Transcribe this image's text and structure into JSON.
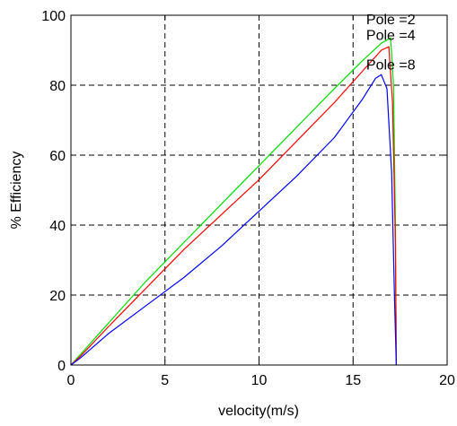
{
  "chart_data": {
    "type": "line",
    "xlabel": "velocity(m/s)",
    "ylabel": "% Efficiency",
    "xlim": [
      0,
      20
    ],
    "ylim": [
      0,
      100
    ],
    "x_ticks": [
      "0",
      "5",
      "10",
      "15",
      "20"
    ],
    "y_ticks": [
      "0",
      "20",
      "40",
      "60",
      "80",
      "100"
    ],
    "grid": true,
    "grid_style": "dashed",
    "series": [
      {
        "color": "#00dd00",
        "points": [
          [
            0,
            0
          ],
          [
            0.5,
            3
          ],
          [
            2,
            12
          ],
          [
            4,
            24
          ],
          [
            6,
            35
          ],
          [
            8,
            46
          ],
          [
            10,
            57
          ],
          [
            12,
            68
          ],
          [
            14,
            79
          ],
          [
            15.5,
            87
          ],
          [
            16.5,
            92
          ],
          [
            17,
            93.5
          ],
          [
            17.15,
            80
          ],
          [
            17.25,
            40
          ],
          [
            17.3,
            0
          ]
        ]
      },
      {
        "color": "#ff0000",
        "points": [
          [
            0,
            0
          ],
          [
            0.5,
            2.5
          ],
          [
            2,
            11
          ],
          [
            4,
            22
          ],
          [
            6,
            33
          ],
          [
            8,
            43
          ],
          [
            10,
            53
          ],
          [
            12,
            64
          ],
          [
            14,
            75
          ],
          [
            15.5,
            84
          ],
          [
            16.5,
            90
          ],
          [
            16.9,
            91
          ],
          [
            17.1,
            75
          ],
          [
            17.25,
            35
          ],
          [
            17.3,
            0
          ]
        ]
      },
      {
        "color": "#0000ff",
        "points": [
          [
            0,
            0
          ],
          [
            0.5,
            2
          ],
          [
            2,
            9
          ],
          [
            4,
            17
          ],
          [
            6,
            25
          ],
          [
            8,
            34
          ],
          [
            10,
            44
          ],
          [
            12,
            54
          ],
          [
            14,
            65
          ],
          [
            15.5,
            76
          ],
          [
            16.2,
            82
          ],
          [
            16.5,
            83
          ],
          [
            16.8,
            79
          ],
          [
            17.05,
            55
          ],
          [
            17.2,
            20
          ],
          [
            17.3,
            0
          ]
        ]
      }
    ],
    "annotations": [
      {
        "text": "Pole =2",
        "x": 15.7,
        "y": 97.5
      },
      {
        "text": "Pole =4",
        "x": 15.7,
        "y": 93
      },
      {
        "text": "Pole =8",
        "x": 15.7,
        "y": 84.5
      }
    ]
  }
}
